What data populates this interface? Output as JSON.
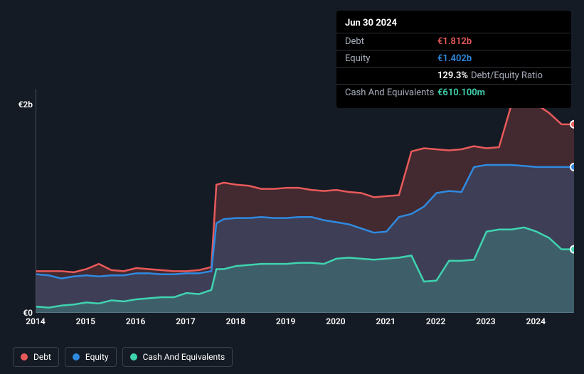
{
  "tooltip": {
    "date": "Jun 30 2024",
    "rows": [
      {
        "label": "Debt",
        "value": "€1.812b",
        "color": "#e85a5a"
      },
      {
        "label": "Equity",
        "value": "€1.402b",
        "color": "#2f8ae0"
      },
      {
        "label": "",
        "value": "129.3%",
        "extra": "Debt/Equity Ratio",
        "color": "#ffffff"
      },
      {
        "label": "Cash And Equivalents",
        "value": "€610.100m",
        "color": "#3fd4b0"
      }
    ]
  },
  "chart": {
    "type": "area",
    "background_color": "#151b24",
    "plot_border_color": "#4a5260",
    "x_range": [
      2014,
      2024.75
    ],
    "y_range": [
      0,
      2.15
    ],
    "y_ticks": [
      {
        "v": 0,
        "label": "€0"
      },
      {
        "v": 2,
        "label": "€2b"
      }
    ],
    "x_ticks": [
      2014,
      2015,
      2016,
      2017,
      2018,
      2019,
      2020,
      2021,
      2022,
      2023,
      2024
    ],
    "series": [
      {
        "name": "Debt",
        "color": "#e85a5a",
        "fill": "rgba(232,90,90,0.22)",
        "line_width": 2.5,
        "data": [
          [
            2014,
            0.4
          ],
          [
            2014.25,
            0.4
          ],
          [
            2014.5,
            0.4
          ],
          [
            2014.75,
            0.39
          ],
          [
            2015,
            0.42
          ],
          [
            2015.25,
            0.47
          ],
          [
            2015.5,
            0.41
          ],
          [
            2015.75,
            0.4
          ],
          [
            2016,
            0.43
          ],
          [
            2016.25,
            0.42
          ],
          [
            2016.5,
            0.41
          ],
          [
            2016.75,
            0.4
          ],
          [
            2017,
            0.4
          ],
          [
            2017.25,
            0.41
          ],
          [
            2017.5,
            0.44
          ],
          [
            2017.6,
            1.23
          ],
          [
            2017.75,
            1.25
          ],
          [
            2018,
            1.23
          ],
          [
            2018.25,
            1.22
          ],
          [
            2018.5,
            1.19
          ],
          [
            2018.75,
            1.19
          ],
          [
            2019,
            1.2
          ],
          [
            2019.25,
            1.2
          ],
          [
            2019.5,
            1.18
          ],
          [
            2019.75,
            1.17
          ],
          [
            2020,
            1.18
          ],
          [
            2020.25,
            1.16
          ],
          [
            2020.5,
            1.15
          ],
          [
            2020.75,
            1.11
          ],
          [
            2021,
            1.12
          ],
          [
            2021.25,
            1.13
          ],
          [
            2021.5,
            1.55
          ],
          [
            2021.75,
            1.58
          ],
          [
            2022,
            1.57
          ],
          [
            2022.25,
            1.56
          ],
          [
            2022.5,
            1.57
          ],
          [
            2022.75,
            1.6
          ],
          [
            2023,
            1.58
          ],
          [
            2023.25,
            1.59
          ],
          [
            2023.5,
            2.0
          ],
          [
            2023.75,
            2.0
          ],
          [
            2024,
            2.0
          ],
          [
            2024.25,
            1.92
          ],
          [
            2024.5,
            1.81
          ],
          [
            2024.75,
            1.81
          ]
        ],
        "marker_at": [
          2024.75,
          1.81
        ]
      },
      {
        "name": "Equity",
        "color": "#2f8ae0",
        "fill": "rgba(47,138,224,0.22)",
        "line_width": 2.5,
        "data": [
          [
            2014,
            0.37
          ],
          [
            2014.25,
            0.36
          ],
          [
            2014.5,
            0.33
          ],
          [
            2014.75,
            0.35
          ],
          [
            2015,
            0.36
          ],
          [
            2015.25,
            0.35
          ],
          [
            2015.5,
            0.36
          ],
          [
            2015.75,
            0.36
          ],
          [
            2016,
            0.38
          ],
          [
            2016.25,
            0.38
          ],
          [
            2016.5,
            0.37
          ],
          [
            2016.75,
            0.37
          ],
          [
            2017,
            0.38
          ],
          [
            2017.25,
            0.38
          ],
          [
            2017.5,
            0.4
          ],
          [
            2017.6,
            0.86
          ],
          [
            2017.75,
            0.9
          ],
          [
            2018,
            0.91
          ],
          [
            2018.25,
            0.91
          ],
          [
            2018.5,
            0.92
          ],
          [
            2018.75,
            0.91
          ],
          [
            2019,
            0.91
          ],
          [
            2019.25,
            0.92
          ],
          [
            2019.5,
            0.92
          ],
          [
            2019.75,
            0.89
          ],
          [
            2020,
            0.87
          ],
          [
            2020.25,
            0.85
          ],
          [
            2020.5,
            0.81
          ],
          [
            2020.75,
            0.77
          ],
          [
            2021,
            0.78
          ],
          [
            2021.25,
            0.92
          ],
          [
            2021.5,
            0.95
          ],
          [
            2021.75,
            1.02
          ],
          [
            2022,
            1.15
          ],
          [
            2022.25,
            1.17
          ],
          [
            2022.5,
            1.16
          ],
          [
            2022.75,
            1.4
          ],
          [
            2023,
            1.42
          ],
          [
            2023.25,
            1.42
          ],
          [
            2023.5,
            1.42
          ],
          [
            2023.75,
            1.41
          ],
          [
            2024,
            1.4
          ],
          [
            2024.25,
            1.4
          ],
          [
            2024.5,
            1.4
          ],
          [
            2024.75,
            1.4
          ]
        ],
        "marker_at": [
          2024.75,
          1.4
        ]
      },
      {
        "name": "Cash And Equivalents",
        "color": "#3fd4b0",
        "fill": "rgba(63,212,176,0.22)",
        "line_width": 2.5,
        "data": [
          [
            2014,
            0.06
          ],
          [
            2014.25,
            0.05
          ],
          [
            2014.5,
            0.07
          ],
          [
            2014.75,
            0.08
          ],
          [
            2015,
            0.1
          ],
          [
            2015.25,
            0.09
          ],
          [
            2015.5,
            0.12
          ],
          [
            2015.75,
            0.11
          ],
          [
            2016,
            0.13
          ],
          [
            2016.25,
            0.14
          ],
          [
            2016.5,
            0.15
          ],
          [
            2016.75,
            0.15
          ],
          [
            2017,
            0.19
          ],
          [
            2017.25,
            0.18
          ],
          [
            2017.5,
            0.22
          ],
          [
            2017.6,
            0.42
          ],
          [
            2017.75,
            0.42
          ],
          [
            2018,
            0.45
          ],
          [
            2018.25,
            0.46
          ],
          [
            2018.5,
            0.47
          ],
          [
            2018.75,
            0.47
          ],
          [
            2019,
            0.47
          ],
          [
            2019.25,
            0.48
          ],
          [
            2019.5,
            0.48
          ],
          [
            2019.75,
            0.47
          ],
          [
            2020,
            0.52
          ],
          [
            2020.25,
            0.53
          ],
          [
            2020.5,
            0.52
          ],
          [
            2020.75,
            0.51
          ],
          [
            2021,
            0.52
          ],
          [
            2021.25,
            0.53
          ],
          [
            2021.5,
            0.55
          ],
          [
            2021.75,
            0.3
          ],
          [
            2022,
            0.31
          ],
          [
            2022.25,
            0.5
          ],
          [
            2022.5,
            0.5
          ],
          [
            2022.75,
            0.51
          ],
          [
            2023,
            0.78
          ],
          [
            2023.25,
            0.8
          ],
          [
            2023.5,
            0.8
          ],
          [
            2023.75,
            0.82
          ],
          [
            2024,
            0.78
          ],
          [
            2024.25,
            0.72
          ],
          [
            2024.5,
            0.61
          ],
          [
            2024.75,
            0.61
          ]
        ],
        "marker_at": [
          2024.75,
          0.61
        ]
      }
    ],
    "legend": [
      {
        "label": "Debt",
        "color": "#e85a5a"
      },
      {
        "label": "Equity",
        "color": "#2f8ae0"
      },
      {
        "label": "Cash And Equivalents",
        "color": "#3fd4b0"
      }
    ]
  }
}
